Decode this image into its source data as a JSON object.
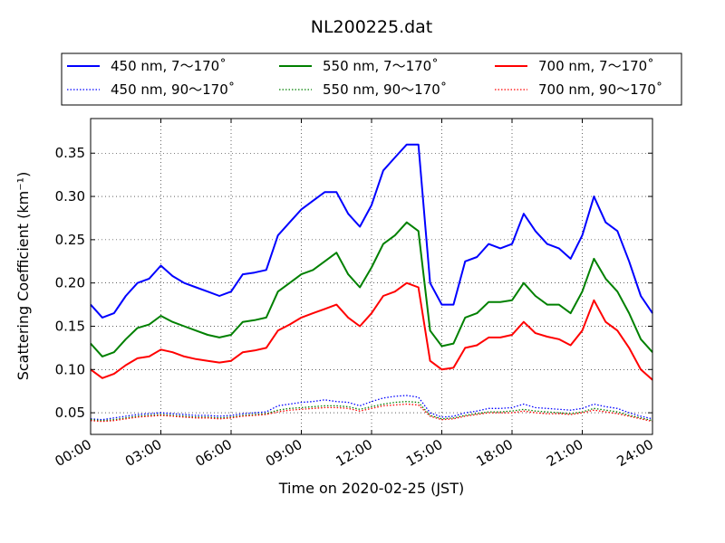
{
  "chart_data": {
    "type": "line",
    "title": "NL200225.dat",
    "xlabel": "Time on 2020-02-25 (JST)",
    "ylabel": "Scattering Coefficient (km⁻¹)",
    "xlim": [
      0,
      24
    ],
    "ylim": [
      0.025,
      0.39
    ],
    "grid": true,
    "legend_position": "top",
    "x_ticks": [
      0,
      3,
      6,
      9,
      12,
      15,
      18,
      21,
      24
    ],
    "x_tick_labels": [
      "00:00",
      "03:00",
      "06:00",
      "09:00",
      "12:00",
      "15:00",
      "18:00",
      "21:00",
      "24:00"
    ],
    "y_ticks": [
      0.05,
      0.1,
      0.15,
      0.2,
      0.25,
      0.3,
      0.35
    ],
    "y_tick_labels": [
      "0.05",
      "0.10",
      "0.15",
      "0.20",
      "0.25",
      "0.30",
      "0.35"
    ],
    "x": [
      0,
      0.5,
      1,
      1.5,
      2,
      2.5,
      3,
      3.5,
      4,
      4.5,
      5,
      5.5,
      6,
      6.5,
      7,
      7.5,
      8,
      8.5,
      9,
      9.5,
      10,
      10.5,
      11,
      11.5,
      12,
      12.5,
      13,
      13.5,
      14,
      14.5,
      15,
      15.5,
      16,
      16.5,
      17,
      17.5,
      18,
      18.5,
      19,
      19.5,
      20,
      20.5,
      21,
      21.5,
      22,
      22.5,
      23,
      23.5,
      24
    ],
    "series": [
      {
        "name": "450 nm, 7～170˚",
        "color": "#0000ff",
        "style": "solid",
        "values": [
          0.175,
          0.16,
          0.165,
          0.185,
          0.2,
          0.205,
          0.22,
          0.208,
          0.2,
          0.195,
          0.19,
          0.185,
          0.19,
          0.21,
          0.212,
          0.215,
          0.255,
          0.27,
          0.285,
          0.295,
          0.305,
          0.305,
          0.28,
          0.265,
          0.29,
          0.33,
          0.345,
          0.36,
          0.36,
          0.2,
          0.175,
          0.175,
          0.225,
          0.23,
          0.245,
          0.24,
          0.245,
          0.28,
          0.26,
          0.245,
          0.24,
          0.228,
          0.255,
          0.3,
          0.27,
          0.26,
          0.225,
          0.185,
          0.165
        ]
      },
      {
        "name": "450 nm, 90～170˚",
        "color": "#0000ff",
        "style": "dotted",
        "values": [
          0.043,
          0.042,
          0.044,
          0.046,
          0.048,
          0.049,
          0.05,
          0.049,
          0.048,
          0.047,
          0.047,
          0.046,
          0.047,
          0.049,
          0.05,
          0.051,
          0.058,
          0.06,
          0.062,
          0.063,
          0.065,
          0.063,
          0.062,
          0.058,
          0.063,
          0.067,
          0.069,
          0.07,
          0.068,
          0.05,
          0.045,
          0.046,
          0.05,
          0.052,
          0.055,
          0.055,
          0.056,
          0.06,
          0.056,
          0.055,
          0.054,
          0.053,
          0.055,
          0.06,
          0.057,
          0.055,
          0.05,
          0.046,
          0.043
        ]
      },
      {
        "name": "550 nm, 7～170˚",
        "color": "#008000",
        "style": "solid",
        "values": [
          0.13,
          0.115,
          0.12,
          0.135,
          0.148,
          0.152,
          0.162,
          0.155,
          0.15,
          0.145,
          0.14,
          0.137,
          0.14,
          0.155,
          0.157,
          0.16,
          0.19,
          0.2,
          0.21,
          0.215,
          0.225,
          0.235,
          0.21,
          0.195,
          0.218,
          0.245,
          0.255,
          0.27,
          0.26,
          0.145,
          0.127,
          0.13,
          0.16,
          0.165,
          0.178,
          0.178,
          0.18,
          0.2,
          0.185,
          0.175,
          0.175,
          0.165,
          0.19,
          0.228,
          0.205,
          0.19,
          0.165,
          0.135,
          0.12
        ]
      },
      {
        "name": "550 nm, 90～170˚",
        "color": "#008000",
        "style": "dotted",
        "values": [
          0.042,
          0.041,
          0.042,
          0.044,
          0.046,
          0.047,
          0.048,
          0.047,
          0.046,
          0.045,
          0.045,
          0.044,
          0.045,
          0.047,
          0.048,
          0.049,
          0.053,
          0.055,
          0.056,
          0.057,
          0.058,
          0.058,
          0.057,
          0.054,
          0.057,
          0.06,
          0.062,
          0.063,
          0.062,
          0.047,
          0.043,
          0.044,
          0.047,
          0.049,
          0.051,
          0.051,
          0.052,
          0.054,
          0.052,
          0.051,
          0.05,
          0.049,
          0.051,
          0.055,
          0.053,
          0.051,
          0.047,
          0.044,
          0.041
        ]
      },
      {
        "name": "700 nm, 7～170˚",
        "color": "#ff0000",
        "style": "solid",
        "values": [
          0.1,
          0.09,
          0.095,
          0.105,
          0.113,
          0.115,
          0.123,
          0.12,
          0.115,
          0.112,
          0.11,
          0.108,
          0.11,
          0.12,
          0.122,
          0.125,
          0.145,
          0.152,
          0.16,
          0.165,
          0.17,
          0.175,
          0.16,
          0.15,
          0.165,
          0.185,
          0.19,
          0.2,
          0.195,
          0.11,
          0.1,
          0.102,
          0.125,
          0.128,
          0.137,
          0.137,
          0.14,
          0.155,
          0.142,
          0.138,
          0.135,
          0.128,
          0.145,
          0.18,
          0.155,
          0.145,
          0.125,
          0.1,
          0.088
        ]
      },
      {
        "name": "700 nm, 90～170˚",
        "color": "#ff0000",
        "style": "dotted",
        "values": [
          0.041,
          0.04,
          0.041,
          0.043,
          0.045,
          0.046,
          0.047,
          0.046,
          0.045,
          0.044,
          0.044,
          0.043,
          0.044,
          0.046,
          0.047,
          0.048,
          0.051,
          0.053,
          0.054,
          0.055,
          0.056,
          0.056,
          0.055,
          0.052,
          0.055,
          0.058,
          0.059,
          0.06,
          0.059,
          0.046,
          0.042,
          0.043,
          0.046,
          0.048,
          0.05,
          0.05,
          0.05,
          0.052,
          0.05,
          0.049,
          0.049,
          0.048,
          0.05,
          0.053,
          0.051,
          0.049,
          0.046,
          0.043,
          0.04
        ]
      }
    ]
  }
}
